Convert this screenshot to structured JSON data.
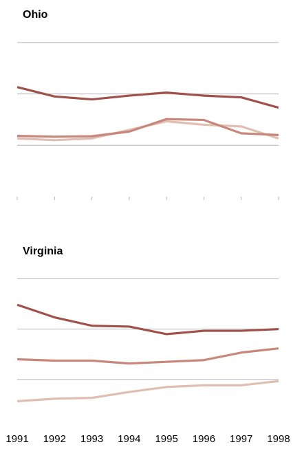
{
  "chart_data": {
    "type": "line",
    "x": [
      "1991",
      "1992",
      "1993",
      "1994",
      "1995",
      "1996",
      "1997",
      "1998"
    ],
    "panels": [
      {
        "title": "Ohio",
        "ylim": [
          0,
          100
        ],
        "gridlines": [
          30,
          60,
          90
        ],
        "series": [
          {
            "color": "#a0524a",
            "values": [
              64.0,
              58.5,
              56.8,
              59.0,
              60.8,
              59.0,
              58.0,
              52.0
            ]
          },
          {
            "color": "#c7877a",
            "values": [
              35.5,
              35.0,
              35.3,
              38.0,
              45.3,
              44.8,
              37.0,
              36.0
            ]
          },
          {
            "color": "#e0beb2",
            "values": [
              34.0,
              33.0,
              34.0,
              39.0,
              44.0,
              42.0,
              41.0,
              34.0
            ]
          }
        ]
      },
      {
        "title": "Virginia",
        "ylim": [
          0,
          100
        ],
        "gridlines": [
          30,
          60,
          90
        ],
        "series": [
          {
            "color": "#a0524a",
            "values": [
              74.5,
              67.0,
              62.0,
              61.5,
              57.0,
              59.0,
              59.0,
              60.0
            ]
          },
          {
            "color": "#c7877a",
            "values": [
              42.0,
              41.2,
              41.2,
              39.5,
              40.5,
              41.5,
              46.0,
              48.5
            ]
          },
          {
            "color": "#e0beb2",
            "values": [
              17.0,
              18.5,
              19.0,
              22.5,
              25.5,
              26.5,
              26.5,
              29.0
            ]
          }
        ]
      }
    ]
  }
}
